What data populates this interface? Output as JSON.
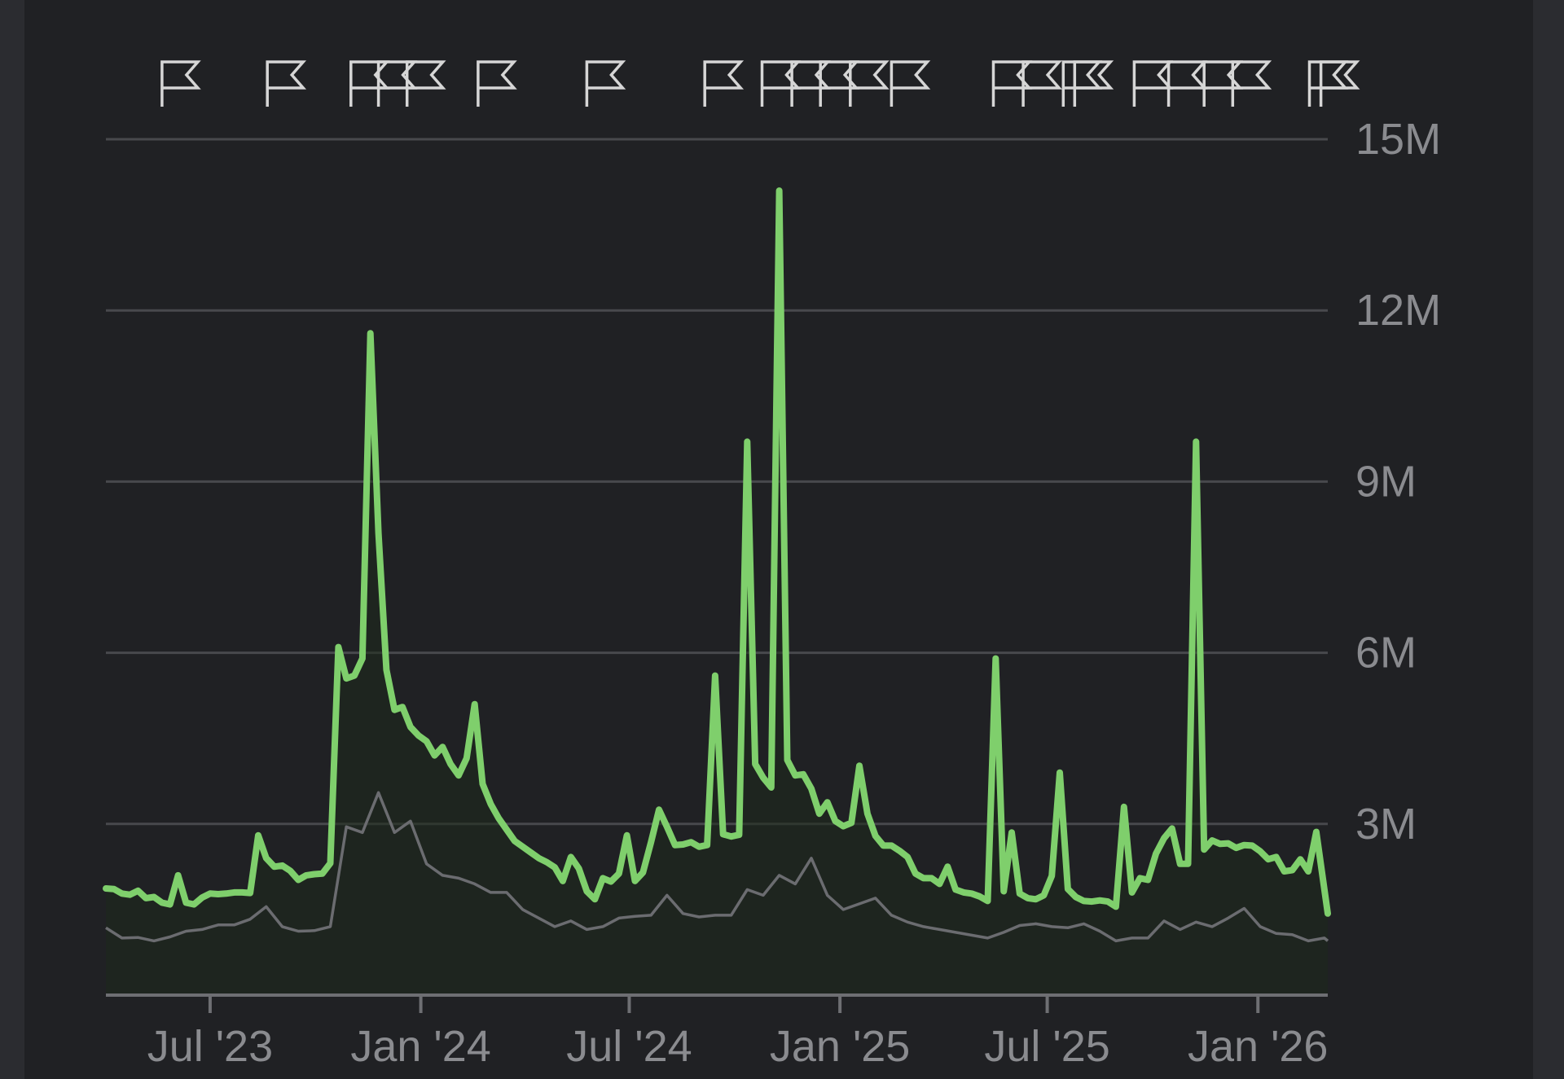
{
  "colors": {
    "background": "#202124",
    "primary_series": "#7fcf6c",
    "secondary_series": "#6b6c70",
    "grid": "#48494d",
    "text": "#8a8b8f",
    "flag": "#d6d6d6"
  },
  "icons": {
    "event_marker": "flag-icon"
  },
  "chart_data": {
    "type": "line",
    "title": "",
    "xlabel": "",
    "ylabel": "",
    "ylim": [
      0,
      15000000
    ],
    "grid": true,
    "y_axis_position": "right",
    "y_ticks": [
      {
        "value": 3000000,
        "label": "3M"
      },
      {
        "value": 6000000,
        "label": "6M"
      },
      {
        "value": 9000000,
        "label": "9M"
      },
      {
        "value": 12000000,
        "label": "12M"
      },
      {
        "value": 15000000,
        "label": "15M"
      }
    ],
    "x_ticks": [
      {
        "date": "2023-07-01",
        "label": "Jul '23"
      },
      {
        "date": "2024-01-01",
        "label": "Jan '24"
      },
      {
        "date": "2024-07-01",
        "label": "Jul '24"
      },
      {
        "date": "2025-01-01",
        "label": "Jan '25"
      },
      {
        "date": "2025-07-01",
        "label": "Jul '25"
      },
      {
        "date": "2026-01-01",
        "label": "Jan '26"
      }
    ],
    "event_markers": [
      "2023-05-20",
      "2023-08-20",
      "2023-11-01",
      "2023-11-25",
      "2023-12-20",
      "2024-02-20",
      "2024-05-25",
      "2024-09-05",
      "2024-10-25",
      "2024-11-20",
      "2024-12-15",
      "2025-01-10",
      "2025-02-15",
      "2025-05-15",
      "2025-06-10",
      "2025-07-15",
      "2025-07-25",
      "2025-09-15",
      "2025-10-15",
      "2025-11-15",
      "2025-12-10",
      "2026-02-15",
      "2026-02-25"
    ],
    "series": [
      {
        "style": "primary",
        "points": [
          [
            "2023-04-01",
            1870000
          ],
          [
            "2023-04-08",
            1860000
          ],
          [
            "2023-04-15",
            1780000
          ],
          [
            "2023-04-22",
            1760000
          ],
          [
            "2023-04-29",
            1830000
          ],
          [
            "2023-05-06",
            1700000
          ],
          [
            "2023-05-13",
            1720000
          ],
          [
            "2023-05-20",
            1620000
          ],
          [
            "2023-05-27",
            1590000
          ],
          [
            "2023-06-03",
            2100000
          ],
          [
            "2023-06-10",
            1620000
          ],
          [
            "2023-06-17",
            1590000
          ],
          [
            "2023-06-24",
            1710000
          ],
          [
            "2023-07-01",
            1780000
          ],
          [
            "2023-07-08",
            1770000
          ],
          [
            "2023-07-15",
            1780000
          ],
          [
            "2023-07-22",
            1800000
          ],
          [
            "2023-07-29",
            1800000
          ],
          [
            "2023-08-05",
            1790000
          ],
          [
            "2023-08-12",
            2800000
          ],
          [
            "2023-08-19",
            2400000
          ],
          [
            "2023-08-26",
            2250000
          ],
          [
            "2023-09-02",
            2270000
          ],
          [
            "2023-09-09",
            2180000
          ],
          [
            "2023-09-16",
            2020000
          ],
          [
            "2023-09-23",
            2100000
          ],
          [
            "2023-09-30",
            2120000
          ],
          [
            "2023-10-07",
            2130000
          ],
          [
            "2023-10-14",
            2310000
          ],
          [
            "2023-10-21",
            6100000
          ],
          [
            "2023-10-28",
            5550000
          ],
          [
            "2023-11-04",
            5600000
          ],
          [
            "2023-11-11",
            5900000
          ],
          [
            "2023-11-18",
            11600000
          ],
          [
            "2023-11-25",
            8100000
          ],
          [
            "2023-12-02",
            5700000
          ],
          [
            "2023-12-09",
            5000000
          ],
          [
            "2023-12-16",
            5050000
          ],
          [
            "2023-12-23",
            4700000
          ],
          [
            "2023-12-30",
            4550000
          ],
          [
            "2024-01-06",
            4450000
          ],
          [
            "2024-01-13",
            4200000
          ],
          [
            "2024-01-20",
            4350000
          ],
          [
            "2024-01-27",
            4050000
          ],
          [
            "2024-02-03",
            3850000
          ],
          [
            "2024-02-10",
            4150000
          ],
          [
            "2024-02-17",
            5100000
          ],
          [
            "2024-02-24",
            3700000
          ],
          [
            "2024-03-02",
            3350000
          ],
          [
            "2024-03-09",
            3100000
          ],
          [
            "2024-03-16",
            2900000
          ],
          [
            "2024-03-23",
            2700000
          ],
          [
            "2024-03-30",
            2600000
          ],
          [
            "2024-04-06",
            2500000
          ],
          [
            "2024-04-13",
            2400000
          ],
          [
            "2024-04-20",
            2330000
          ],
          [
            "2024-04-27",
            2240000
          ],
          [
            "2024-05-04",
            2000000
          ],
          [
            "2024-05-11",
            2420000
          ],
          [
            "2024-05-18",
            2220000
          ],
          [
            "2024-05-25",
            1820000
          ],
          [
            "2024-06-01",
            1680000
          ],
          [
            "2024-06-08",
            2050000
          ],
          [
            "2024-06-15",
            1990000
          ],
          [
            "2024-06-22",
            2130000
          ],
          [
            "2024-06-29",
            2800000
          ],
          [
            "2024-07-06",
            2000000
          ],
          [
            "2024-07-13",
            2150000
          ],
          [
            "2024-07-20",
            2680000
          ],
          [
            "2024-07-27",
            3250000
          ],
          [
            "2024-08-03",
            2950000
          ],
          [
            "2024-08-10",
            2630000
          ],
          [
            "2024-08-17",
            2640000
          ],
          [
            "2024-08-24",
            2680000
          ],
          [
            "2024-08-31",
            2600000
          ],
          [
            "2024-09-07",
            2630000
          ],
          [
            "2024-09-14",
            5600000
          ],
          [
            "2024-09-21",
            2820000
          ],
          [
            "2024-09-28",
            2780000
          ],
          [
            "2024-10-05",
            2810000
          ],
          [
            "2024-10-12",
            9700000
          ],
          [
            "2024-10-19",
            4050000
          ],
          [
            "2024-10-26",
            3810000
          ],
          [
            "2024-11-02",
            3640000
          ],
          [
            "2024-11-09",
            14100000
          ],
          [
            "2024-11-16",
            4120000
          ],
          [
            "2024-11-23",
            3850000
          ],
          [
            "2024-11-30",
            3870000
          ],
          [
            "2024-12-07",
            3620000
          ],
          [
            "2024-12-14",
            3180000
          ],
          [
            "2024-12-21",
            3380000
          ],
          [
            "2024-12-28",
            3050000
          ],
          [
            "2025-01-04",
            2960000
          ],
          [
            "2025-01-11",
            3020000
          ],
          [
            "2025-01-18",
            4020000
          ],
          [
            "2025-01-25",
            3180000
          ],
          [
            "2025-02-01",
            2790000
          ],
          [
            "2025-02-08",
            2620000
          ],
          [
            "2025-02-15",
            2620000
          ],
          [
            "2025-02-22",
            2530000
          ],
          [
            "2025-03-01",
            2420000
          ],
          [
            "2025-03-08",
            2130000
          ],
          [
            "2025-03-15",
            2050000
          ],
          [
            "2025-03-22",
            2050000
          ],
          [
            "2025-03-29",
            1950000
          ],
          [
            "2025-04-05",
            2250000
          ],
          [
            "2025-04-12",
            1850000
          ],
          [
            "2025-04-19",
            1800000
          ],
          [
            "2025-04-26",
            1780000
          ],
          [
            "2025-05-03",
            1730000
          ],
          [
            "2025-05-10",
            1650000
          ],
          [
            "2025-05-17",
            5900000
          ],
          [
            "2025-05-24",
            1820000
          ],
          [
            "2025-05-31",
            2850000
          ],
          [
            "2025-06-07",
            1780000
          ],
          [
            "2025-06-14",
            1700000
          ],
          [
            "2025-06-21",
            1680000
          ],
          [
            "2025-06-28",
            1750000
          ],
          [
            "2025-07-05",
            2090000
          ],
          [
            "2025-07-12",
            3900000
          ],
          [
            "2025-07-19",
            1860000
          ],
          [
            "2025-07-26",
            1720000
          ],
          [
            "2025-08-02",
            1650000
          ],
          [
            "2025-08-09",
            1640000
          ],
          [
            "2025-08-16",
            1660000
          ],
          [
            "2025-08-23",
            1640000
          ],
          [
            "2025-08-30",
            1550000
          ],
          [
            "2025-09-06",
            3300000
          ],
          [
            "2025-09-13",
            1800000
          ],
          [
            "2025-09-20",
            2050000
          ],
          [
            "2025-09-27",
            2020000
          ],
          [
            "2025-10-04",
            2480000
          ],
          [
            "2025-10-11",
            2750000
          ],
          [
            "2025-10-18",
            2920000
          ],
          [
            "2025-10-25",
            2300000
          ],
          [
            "2025-11-01",
            2300000
          ],
          [
            "2025-11-08",
            9700000
          ],
          [
            "2025-11-15",
            2550000
          ],
          [
            "2025-11-22",
            2710000
          ],
          [
            "2025-11-29",
            2650000
          ],
          [
            "2025-12-06",
            2660000
          ],
          [
            "2025-12-13",
            2580000
          ],
          [
            "2025-12-20",
            2630000
          ],
          [
            "2025-12-27",
            2620000
          ],
          [
            "2026-01-03",
            2520000
          ],
          [
            "2026-01-10",
            2380000
          ],
          [
            "2026-01-17",
            2420000
          ],
          [
            "2026-01-24",
            2170000
          ],
          [
            "2026-01-31",
            2190000
          ],
          [
            "2026-02-07",
            2380000
          ],
          [
            "2026-02-14",
            2170000
          ],
          [
            "2026-02-21",
            2860000
          ],
          [
            "2026-03-03",
            1430000
          ]
        ]
      },
      {
        "style": "secondary",
        "points": [
          [
            "2023-04-01",
            1180000
          ],
          [
            "2023-04-15",
            1000000
          ],
          [
            "2023-04-29",
            1010000
          ],
          [
            "2023-05-13",
            950000
          ],
          [
            "2023-05-27",
            1020000
          ],
          [
            "2023-06-10",
            1120000
          ],
          [
            "2023-06-24",
            1150000
          ],
          [
            "2023-07-08",
            1230000
          ],
          [
            "2023-07-22",
            1230000
          ],
          [
            "2023-08-05",
            1330000
          ],
          [
            "2023-08-19",
            1550000
          ],
          [
            "2023-09-02",
            1200000
          ],
          [
            "2023-09-16",
            1120000
          ],
          [
            "2023-09-30",
            1130000
          ],
          [
            "2023-10-14",
            1200000
          ],
          [
            "2023-10-28",
            2950000
          ],
          [
            "2023-11-11",
            2850000
          ],
          [
            "2023-11-25",
            3550000
          ],
          [
            "2023-12-09",
            2850000
          ],
          [
            "2023-12-23",
            3050000
          ],
          [
            "2024-01-06",
            2300000
          ],
          [
            "2024-01-20",
            2100000
          ],
          [
            "2024-02-03",
            2050000
          ],
          [
            "2024-02-17",
            1950000
          ],
          [
            "2024-03-02",
            1800000
          ],
          [
            "2024-03-16",
            1800000
          ],
          [
            "2024-03-30",
            1500000
          ],
          [
            "2024-04-13",
            1350000
          ],
          [
            "2024-04-27",
            1200000
          ],
          [
            "2024-05-11",
            1300000
          ],
          [
            "2024-05-25",
            1150000
          ],
          [
            "2024-06-08",
            1200000
          ],
          [
            "2024-06-22",
            1350000
          ],
          [
            "2024-07-06",
            1380000
          ],
          [
            "2024-07-20",
            1400000
          ],
          [
            "2024-08-03",
            1750000
          ],
          [
            "2024-08-17",
            1430000
          ],
          [
            "2024-08-31",
            1370000
          ],
          [
            "2024-09-14",
            1400000
          ],
          [
            "2024-09-28",
            1400000
          ],
          [
            "2024-10-12",
            1850000
          ],
          [
            "2024-10-26",
            1750000
          ],
          [
            "2024-11-09",
            2100000
          ],
          [
            "2024-11-23",
            1950000
          ],
          [
            "2024-12-07",
            2400000
          ],
          [
            "2024-12-21",
            1750000
          ],
          [
            "2025-01-04",
            1500000
          ],
          [
            "2025-01-18",
            1600000
          ],
          [
            "2025-02-01",
            1700000
          ],
          [
            "2025-02-15",
            1400000
          ],
          [
            "2025-03-01",
            1280000
          ],
          [
            "2025-03-15",
            1200000
          ],
          [
            "2025-03-29",
            1150000
          ],
          [
            "2025-04-12",
            1100000
          ],
          [
            "2025-04-26",
            1050000
          ],
          [
            "2025-05-10",
            1000000
          ],
          [
            "2025-05-24",
            1100000
          ],
          [
            "2025-06-07",
            1220000
          ],
          [
            "2025-06-21",
            1250000
          ],
          [
            "2025-07-05",
            1200000
          ],
          [
            "2025-07-19",
            1180000
          ],
          [
            "2025-08-02",
            1250000
          ],
          [
            "2025-08-16",
            1120000
          ],
          [
            "2025-08-30",
            950000
          ],
          [
            "2025-09-13",
            1000000
          ],
          [
            "2025-09-27",
            1000000
          ],
          [
            "2025-10-11",
            1300000
          ],
          [
            "2025-10-25",
            1150000
          ],
          [
            "2025-11-08",
            1280000
          ],
          [
            "2025-11-22",
            1200000
          ],
          [
            "2025-12-06",
            1350000
          ],
          [
            "2025-12-20",
            1520000
          ],
          [
            "2026-01-03",
            1200000
          ],
          [
            "2026-01-17",
            1080000
          ],
          [
            "2026-01-31",
            1060000
          ],
          [
            "2026-02-14",
            950000
          ],
          [
            "2026-02-28",
            1000000
          ],
          [
            "2026-03-03",
            950000
          ]
        ]
      }
    ]
  }
}
